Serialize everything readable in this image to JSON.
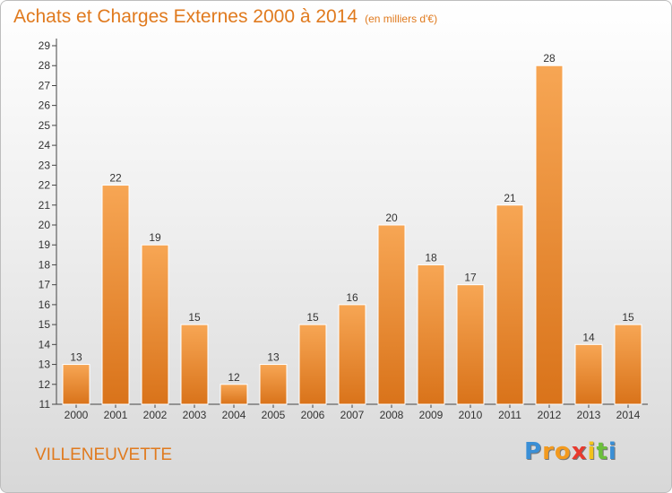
{
  "header": {
    "title": "Achats et Charges Externes 2000 à 2014",
    "subtitle": "(en milliers d'€)"
  },
  "commune": "VILLENEUVETTE",
  "logo": {
    "letters": [
      "P",
      "r",
      "o",
      "x",
      "i",
      "t",
      "i"
    ],
    "colors": [
      "#3a8fd6",
      "#f39a1e",
      "#f39a1e",
      "#e83a2e",
      "#f2c21b",
      "#6cbf3c",
      "#3a8fd6"
    ]
  },
  "colors": {
    "bar_light": "#f7a654",
    "bar_dark": "#d9731a",
    "title": "#e07a1e"
  },
  "chart_data": {
    "type": "bar",
    "title": "Achats et Charges Externes 2000 à 2014",
    "subtitle": "(en milliers d'€)",
    "categories": [
      "2000",
      "2001",
      "2002",
      "2003",
      "2004",
      "2005",
      "2006",
      "2007",
      "2008",
      "2009",
      "2010",
      "2011",
      "2012",
      "2013",
      "2014"
    ],
    "values": [
      13,
      22,
      19,
      15,
      12,
      13,
      15,
      16,
      20,
      18,
      17,
      21,
      28,
      14,
      15
    ],
    "ylim": [
      11,
      29
    ],
    "yticks": [
      11,
      12,
      13,
      14,
      15,
      16,
      17,
      18,
      19,
      20,
      21,
      22,
      23,
      24,
      25,
      26,
      27,
      28,
      29
    ],
    "grid": false,
    "data_labels": true
  }
}
